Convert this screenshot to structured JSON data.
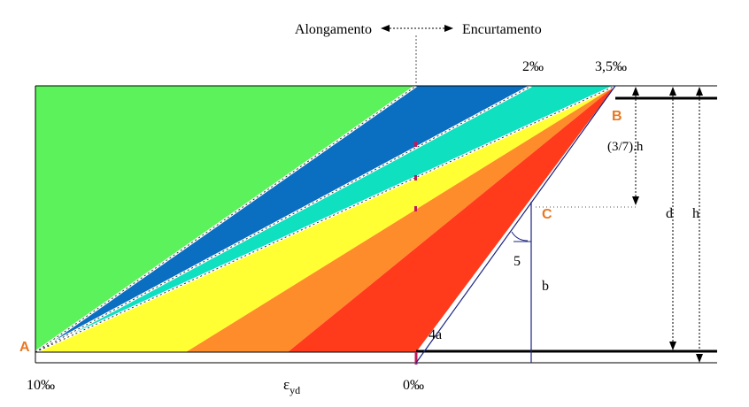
{
  "labels": {
    "alongamento": "Alongamento",
    "encurtamento": "Encurtamento",
    "two_permil": "2‰",
    "three_five_permil": "3,5‰",
    "three_sevenths_h": "(3/7).h",
    "d": "d",
    "h": "h",
    "five": "5",
    "b": "b",
    "four_a": "4a",
    "ten_permil": "10‰",
    "epsilon_yd_main": "ε",
    "epsilon_yd_sub": "yd",
    "zero_permil": "0‰"
  },
  "points": {
    "A": "A",
    "B": "B",
    "C": "C"
  },
  "colors": {
    "domain_1": "#5cf25c",
    "domain_2": "#0a6fc0",
    "domain_3": "#0fe0c0",
    "domain_4": "#ffff33",
    "domain_5": "#ff8c2a",
    "domain_6": "#ff3b1c",
    "point_label": "#e87722",
    "construction_line": "#1a237e"
  }
}
